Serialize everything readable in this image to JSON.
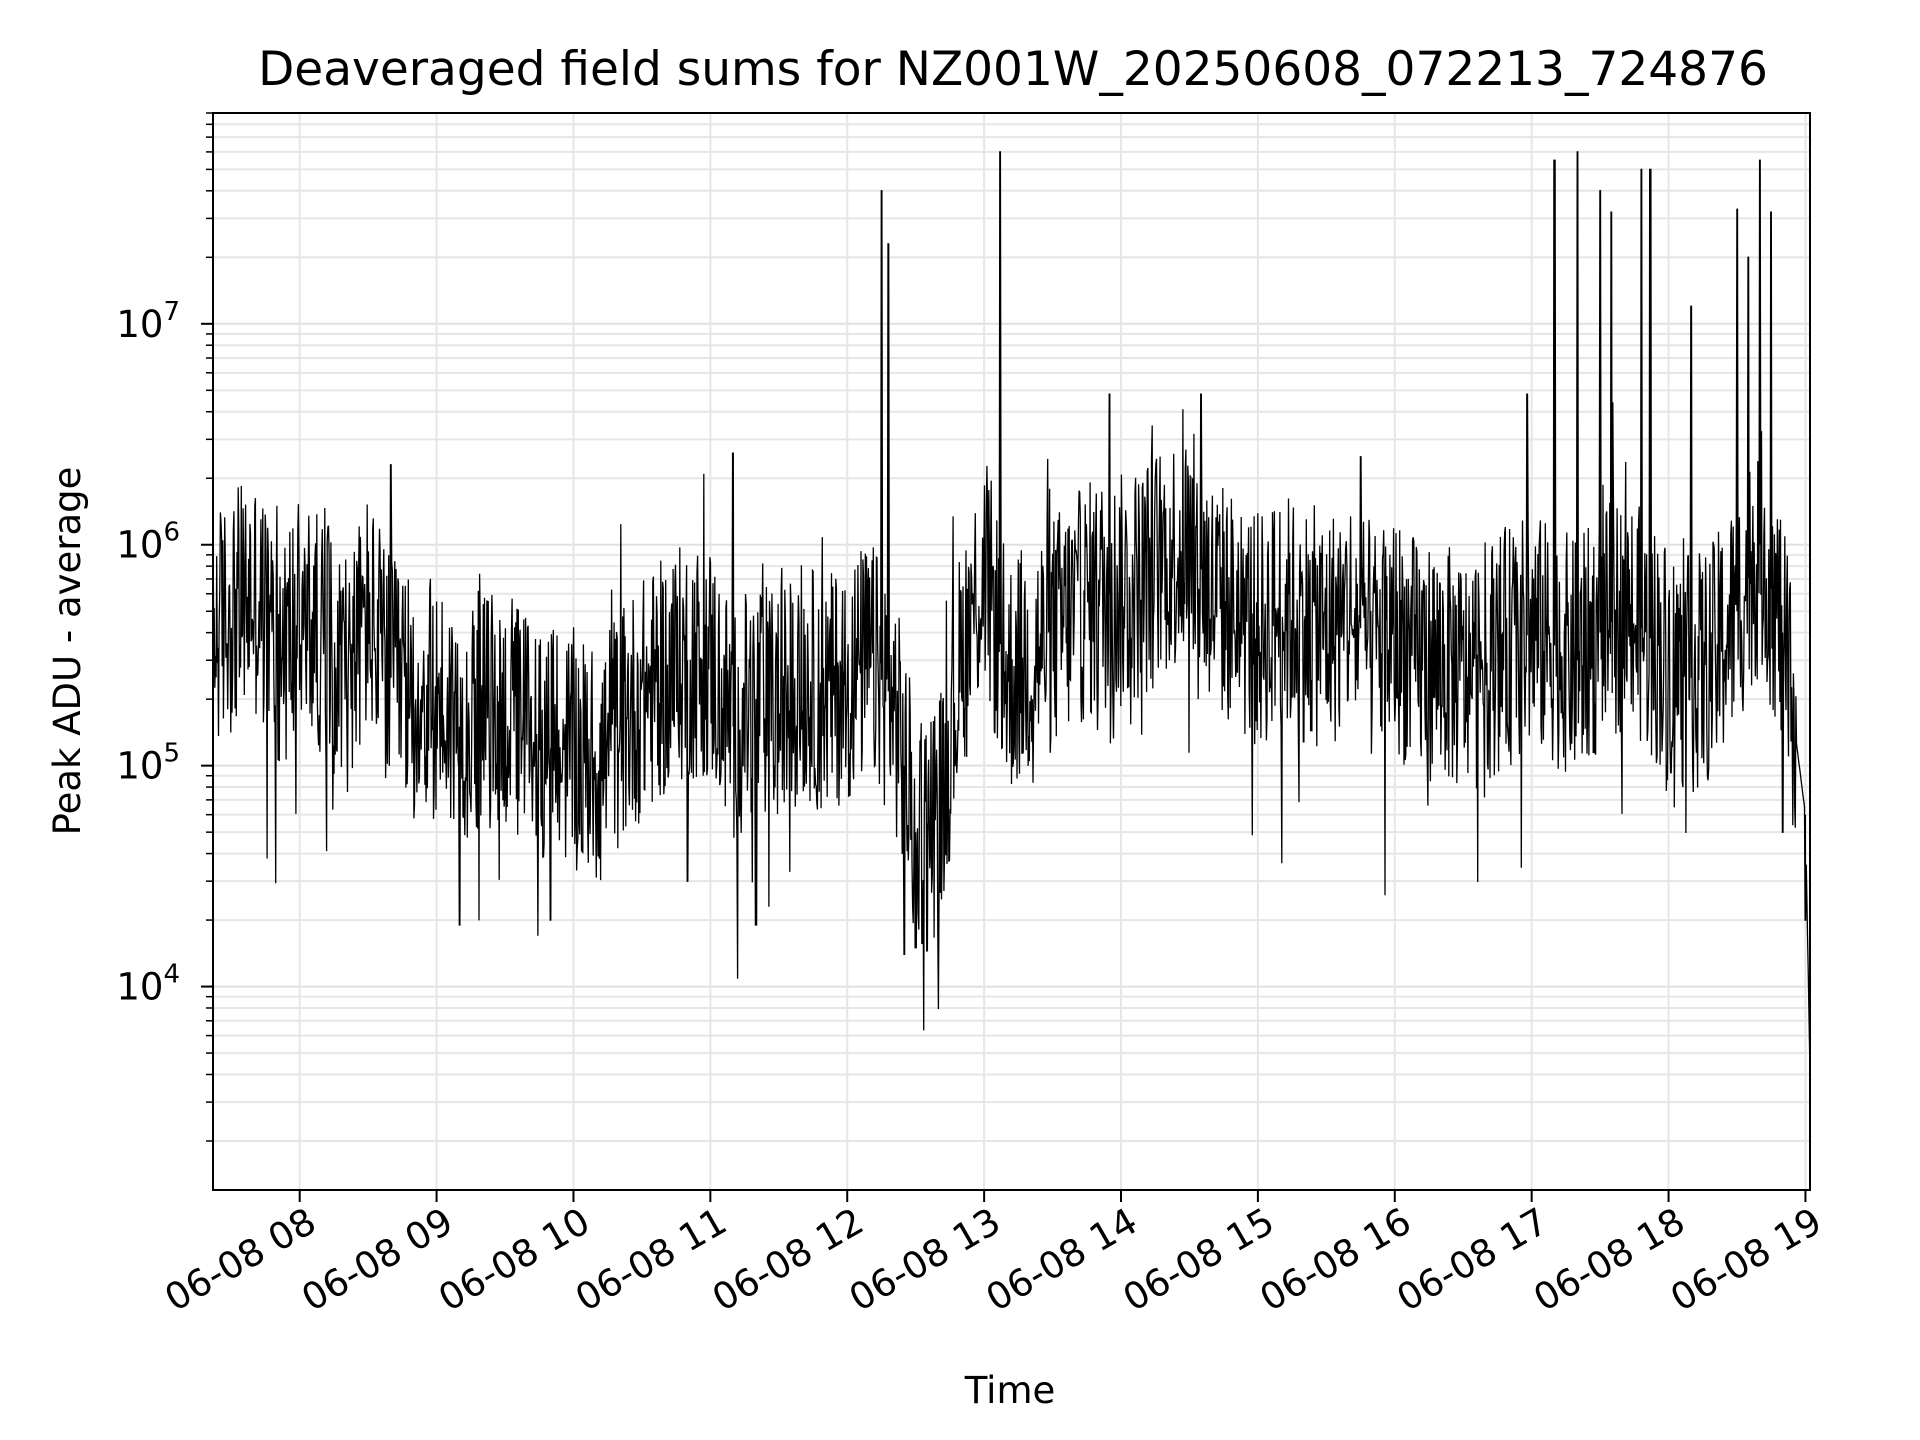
{
  "chart_data": {
    "type": "line",
    "title": "Deaveraged field sums for NZ001W_20250608_072213_724876",
    "xlabel": "Time",
    "ylabel": "Peak ADU - average",
    "yscale": "log",
    "ylim": [
      1200,
      90000000
    ],
    "xlim": [
      "06-08 07:22",
      "06-08 19:02"
    ],
    "x_ticks": [
      "06-08 08",
      "06-08 09",
      "06-08 10",
      "06-08 11",
      "06-08 12",
      "06-08 13",
      "06-08 14",
      "06-08 15",
      "06-08 16",
      "06-08 17",
      "06-08 18",
      "06-08 19"
    ],
    "x_tick_values": [
      "06-08 08:00",
      "06-08 09:00",
      "06-08 10:00",
      "06-08 11:00",
      "06-08 12:00",
      "06-08 13:00",
      "06-08 14:00",
      "06-08 15:00",
      "06-08 16:00",
      "06-08 17:00",
      "06-08 18:00",
      "06-08 19:00"
    ],
    "y_ticks": [
      {
        "value": 10000,
        "base": "10",
        "exp": "4"
      },
      {
        "value": 100000,
        "base": "10",
        "exp": "5"
      },
      {
        "value": 1000000,
        "base": "10",
        "exp": "6"
      },
      {
        "value": 10000000,
        "base": "10",
        "exp": "7"
      }
    ],
    "grid": true,
    "line_color": "#000000",
    "series": [
      {
        "x": [
          "06-08 07:22",
          "06-08 07:30",
          "06-08 07:40",
          "06-08 07:50",
          "06-08 08:00",
          "06-08 08:10",
          "06-08 08:20",
          "06-08 08:30",
          "06-08 08:40",
          "06-08 08:50",
          "06-08 09:00",
          "06-08 09:10",
          "06-08 09:20",
          "06-08 09:30",
          "06-08 09:40",
          "06-08 09:50",
          "06-08 10:00",
          "06-08 10:10",
          "06-08 10:20",
          "06-08 10:30",
          "06-08 10:40",
          "06-08 10:50",
          "06-08 11:00",
          "06-08 11:10",
          "06-08 11:20",
          "06-08 11:30",
          "06-08 11:40",
          "06-08 11:50",
          "06-08 12:00",
          "06-08 12:10",
          "06-08 12:20",
          "06-08 12:30",
          "06-08 12:40",
          "06-08 12:50",
          "06-08 13:00",
          "06-08 13:10",
          "06-08 13:20",
          "06-08 13:30",
          "06-08 13:40",
          "06-08 13:50",
          "06-08 14:00",
          "06-08 14:10",
          "06-08 14:20",
          "06-08 14:30",
          "06-08 14:40",
          "06-08 14:50",
          "06-08 15:00",
          "06-08 15:10",
          "06-08 15:20",
          "06-08 15:30",
          "06-08 15:40",
          "06-08 15:50",
          "06-08 16:00",
          "06-08 16:10",
          "06-08 16:20",
          "06-08 16:30",
          "06-08 16:40",
          "06-08 16:50",
          "06-08 17:00",
          "06-08 17:10",
          "06-08 17:20",
          "06-08 17:30",
          "06-08 17:40",
          "06-08 17:50",
          "06-08 18:00",
          "06-08 18:10",
          "06-08 18:20",
          "06-08 18:30",
          "06-08 18:40",
          "06-08 18:50",
          "06-08 19:00",
          "06-08 19:02"
        ],
        "y": [
          400000,
          500000,
          600000,
          350000,
          450000,
          400000,
          250000,
          500000,
          250000,
          200000,
          200000,
          150000,
          180000,
          170000,
          150000,
          120000,
          120000,
          100000,
          150000,
          200000,
          250000,
          300000,
          300000,
          150000,
          200000,
          180000,
          250000,
          200000,
          250000,
          300000,
          200000,
          50000,
          60000,
          300000,
          800000,
          250000,
          300000,
          400000,
          500000,
          600000,
          600000,
          700000,
          900000,
          1000000,
          600000,
          500000,
          400000,
          500000,
          450000,
          400000,
          500000,
          350000,
          400000,
          300000,
          300000,
          250000,
          300000,
          350000,
          400000,
          350000,
          300000,
          400000,
          500000,
          400000,
          300000,
          250000,
          300000,
          500000,
          1000000,
          400000,
          60000,
          4000
        ],
        "spike_x": [
          "06-08 07:50",
          "06-08 08:40",
          "06-08 11:10",
          "06-08 12:15",
          "06-08 12:18",
          "06-08 13:07",
          "06-08 13:55",
          "06-08 14:35",
          "06-08 15:45",
          "06-08 16:58",
          "06-08 17:10",
          "06-08 17:20",
          "06-08 17:30",
          "06-08 17:35",
          "06-08 17:48",
          "06-08 17:52",
          "06-08 18:10",
          "06-08 18:30",
          "06-08 18:35",
          "06-08 18:40",
          "06-08 18:45"
        ],
        "spike_y": [
          1500000,
          2300000,
          2600000,
          40000000,
          23000000,
          60000000,
          4800000,
          4800000,
          2500000,
          4800000,
          55000000,
          60000000,
          40000000,
          32000000,
          50000000,
          50000000,
          12000000,
          33000000,
          20000000,
          55000000,
          32000000
        ],
        "dip_x": [
          "06-08 09:10",
          "06-08 09:50",
          "06-08 10:50",
          "06-08 11:20",
          "06-08 12:25",
          "06-08 12:30",
          "06-08 12:35",
          "06-08 18:50",
          "06-08 19:00"
        ],
        "dip_y": [
          19000,
          20000,
          30000,
          19000,
          14000,
          15000,
          14500,
          50000,
          20000
        ]
      }
    ]
  }
}
